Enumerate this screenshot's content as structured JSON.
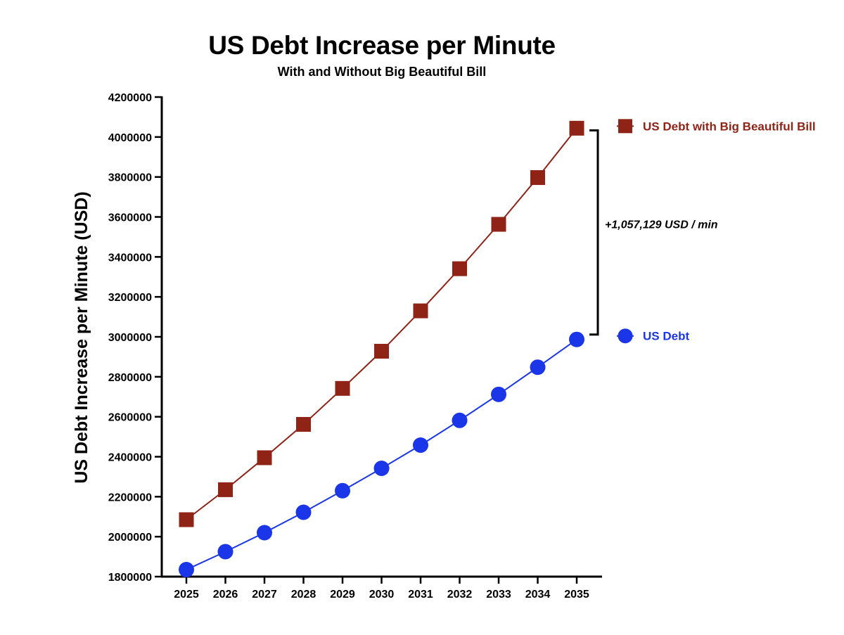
{
  "title": "US Debt Increase per Minute",
  "subtitle": "With and Without Big Beautiful Bill",
  "chart_data": {
    "type": "line",
    "title": "US Debt Increase per Minute",
    "subtitle": "With and Without Big Beautiful Bill",
    "xlabel": "",
    "ylabel": "US Debt Increase per Minute (USD)",
    "x": [
      2025,
      2026,
      2027,
      2028,
      2029,
      2030,
      2031,
      2032,
      2033,
      2034,
      2035
    ],
    "xticks": [
      "2025",
      "2026",
      "2027",
      "2028",
      "2029",
      "2030",
      "2031",
      "2032",
      "2033",
      "2034",
      "2035"
    ],
    "ylim": [
      1800000,
      4200000
    ],
    "yticks": [
      "1800000",
      "2000000",
      "2200000",
      "2400000",
      "2600000",
      "2800000",
      "3000000",
      "3200000",
      "3400000",
      "3600000",
      "3800000",
      "4000000",
      "4200000"
    ],
    "grid": false,
    "legend_position": "right",
    "series": [
      {
        "name": "US Debt with Big Beautiful Bill",
        "color": "#8e2316",
        "marker": "square",
        "values": [
          2085000,
          2235000,
          2395000,
          2562000,
          2742000,
          2928000,
          3130000,
          3341000,
          3563000,
          3797000,
          4044000
        ]
      },
      {
        "name": "US Debt",
        "color": "#1a36e8",
        "marker": "circle",
        "values": [
          1835000,
          1925000,
          2020000,
          2122000,
          2230000,
          2342000,
          2458000,
          2582000,
          2712000,
          2848000,
          2987000
        ]
      }
    ],
    "annotation": {
      "text": "+1,057,129 USD / min",
      "from_value": 2987000,
      "to_value": 4044000
    }
  }
}
